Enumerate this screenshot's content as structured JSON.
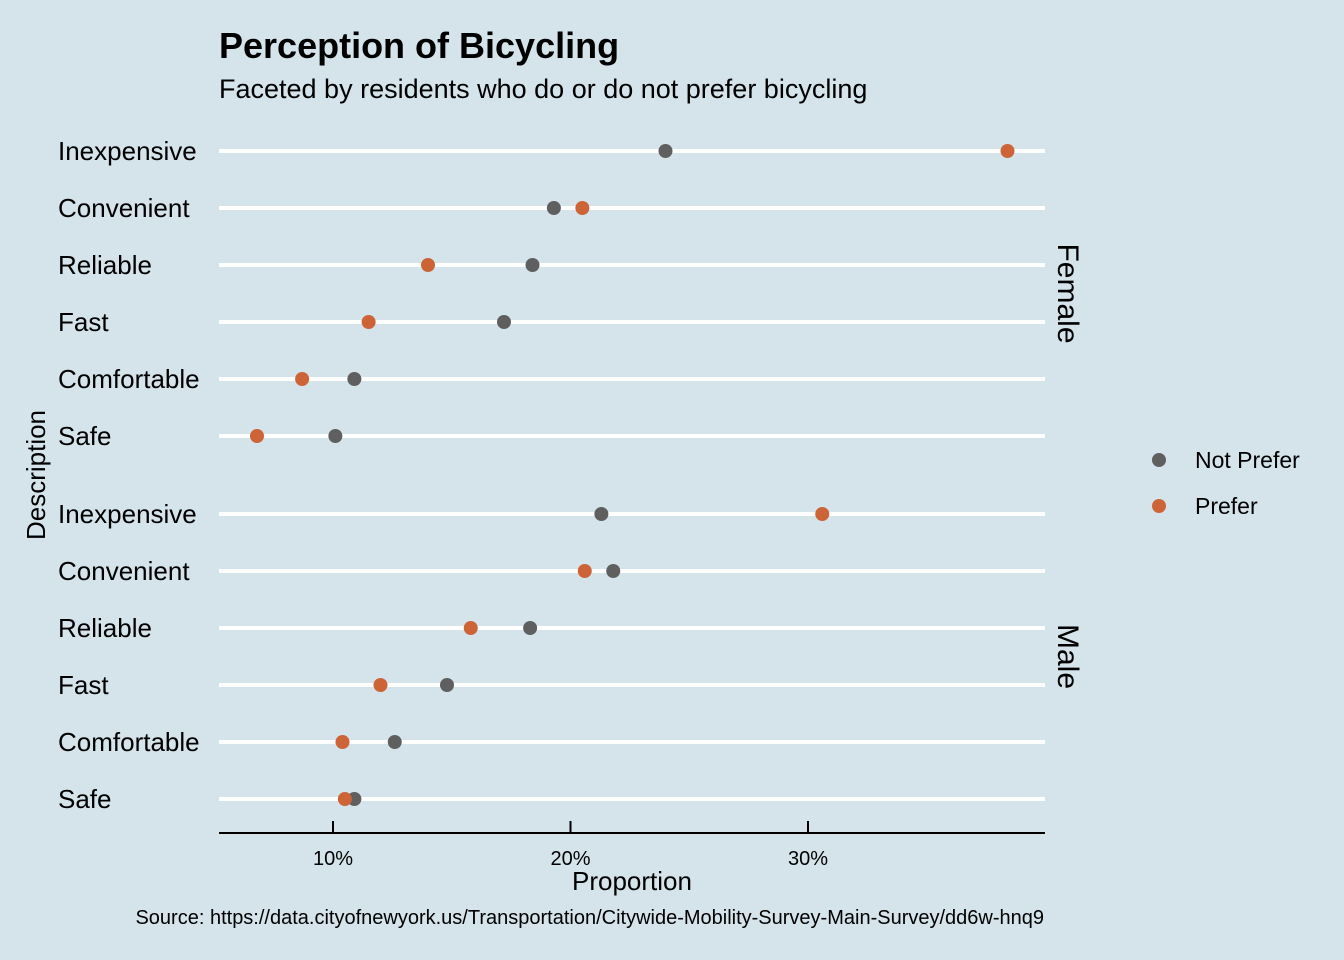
{
  "chart_data": {
    "type": "scatter",
    "title": "Perception of Bicycling",
    "subtitle": "Faceted by residents who do or do not prefer bicycling",
    "xlabel": "Proportion",
    "ylabel": "Description",
    "caption": "Source: https://data.cityofnewyork.us/Transportation/Citywide-Mobility-Survey-Main-Survey/dd6w-hnq9",
    "xlim": [
      5.2,
      39.9
    ],
    "x_ticks": [
      10,
      20,
      30
    ],
    "x_tick_labels": [
      "10%",
      "20%",
      "30%"
    ],
    "grid": "horizontal only",
    "legend_position": "right",
    "categories": [
      "Inexpensive",
      "Convenient",
      "Reliable",
      "Fast",
      "Comfortable",
      "Safe"
    ],
    "colors": {
      "Not Prefer": "#5f5f5f",
      "Prefer": "#cd6438"
    },
    "legend": [
      "Not Prefer",
      "Prefer"
    ],
    "facets": [
      {
        "label": "Female",
        "series": [
          {
            "name": "Not Prefer",
            "values": [
              24.0,
              19.3,
              18.4,
              17.2,
              10.9,
              10.1
            ]
          },
          {
            "name": "Prefer",
            "values": [
              38.4,
              20.5,
              14.0,
              11.5,
              8.7,
              6.8
            ]
          }
        ]
      },
      {
        "label": "Male",
        "series": [
          {
            "name": "Not Prefer",
            "values": [
              21.3,
              21.8,
              18.3,
              14.8,
              12.6,
              10.9
            ]
          },
          {
            "name": "Prefer",
            "values": [
              30.6,
              20.6,
              15.8,
              12.0,
              10.4,
              10.5
            ]
          }
        ]
      }
    ]
  }
}
